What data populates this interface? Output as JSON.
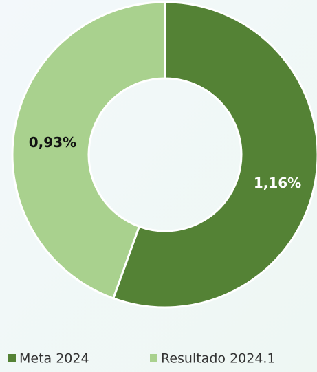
{
  "chart_data": {
    "type": "donut",
    "categories": [
      "Meta 2024",
      "Resultado 2024.1"
    ],
    "values": [
      1.16,
      0.93
    ],
    "value_labels": [
      "1,16%",
      "0,93%"
    ],
    "colors": [
      "#548235",
      "#a9d18e"
    ],
    "legend": "bottom"
  }
}
